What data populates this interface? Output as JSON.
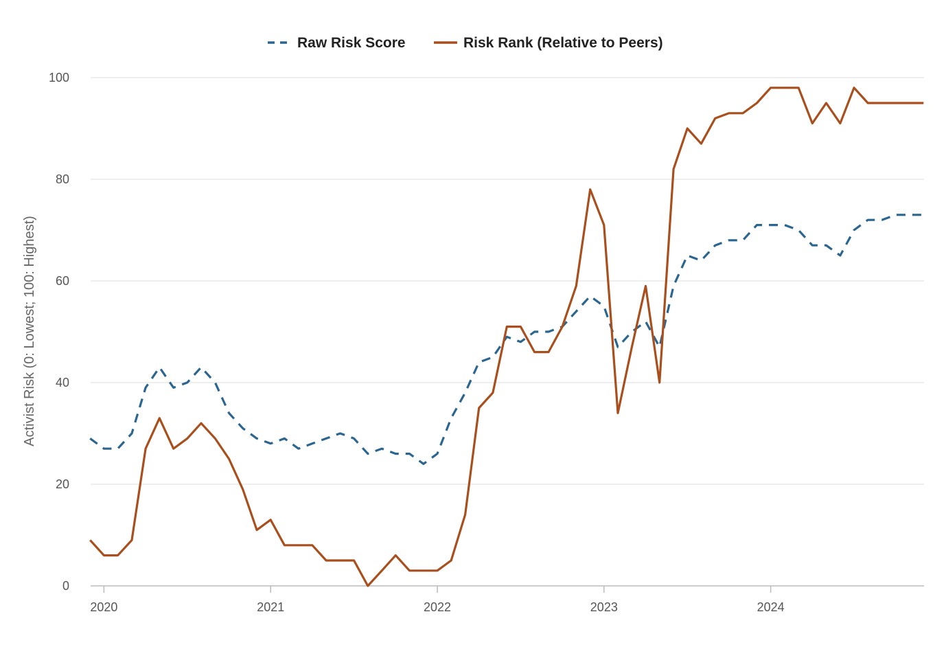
{
  "chart_data": {
    "type": "line",
    "ylabel": "Activist Risk (0: Lowest; 100: Highest)",
    "ylim": [
      0,
      100
    ],
    "yticks": [
      0,
      20,
      40,
      60,
      80,
      100
    ],
    "xlim": [
      2019.92,
      2024.92
    ],
    "xticks": [
      {
        "label": "2020",
        "value": 2020
      },
      {
        "label": "2021",
        "value": 2021
      },
      {
        "label": "2022",
        "value": 2022
      },
      {
        "label": "2023",
        "value": 2023
      },
      {
        "label": "2024",
        "value": 2024
      }
    ],
    "grid": true,
    "legend_position": "top-center",
    "x": [
      2019.917,
      2020.0,
      2020.083,
      2020.167,
      2020.25,
      2020.333,
      2020.417,
      2020.5,
      2020.583,
      2020.667,
      2020.75,
      2020.833,
      2020.917,
      2021.0,
      2021.083,
      2021.167,
      2021.25,
      2021.333,
      2021.417,
      2021.5,
      2021.583,
      2021.667,
      2021.75,
      2021.833,
      2021.917,
      2022.0,
      2022.083,
      2022.167,
      2022.25,
      2022.333,
      2022.417,
      2022.5,
      2022.583,
      2022.667,
      2022.75,
      2022.833,
      2022.917,
      2023.0,
      2023.083,
      2023.167,
      2023.25,
      2023.333,
      2023.417,
      2023.5,
      2023.583,
      2023.667,
      2023.75,
      2023.833,
      2023.917,
      2024.0,
      2024.083,
      2024.167,
      2024.25,
      2024.333,
      2024.417,
      2024.5,
      2024.583,
      2024.667,
      2024.75,
      2024.833,
      2024.917
    ],
    "series": [
      {
        "name": "Raw Risk Score",
        "color": "#2a6690",
        "dash": true,
        "values": [
          29,
          27,
          27,
          30,
          39,
          43,
          39,
          40,
          43,
          40,
          34,
          31,
          29,
          28,
          29,
          27,
          28,
          29,
          30,
          29,
          26,
          27,
          26,
          26,
          24,
          26,
          33,
          38,
          44,
          45,
          49,
          48,
          50,
          50,
          51,
          54,
          57,
          55,
          47,
          50,
          52,
          47,
          59,
          65,
          64,
          67,
          68,
          68,
          71,
          71,
          71,
          70,
          67,
          67,
          65,
          70,
          72,
          72,
          73,
          73,
          73
        ]
      },
      {
        "name": "Risk Rank (Relative to Peers)",
        "color": "#a94f1d",
        "dash": false,
        "values": [
          9,
          6,
          6,
          9,
          27,
          33,
          27,
          29,
          32,
          29,
          25,
          19,
          11,
          13,
          8,
          8,
          8,
          5,
          5,
          5,
          0,
          3,
          6,
          3,
          3,
          3,
          5,
          14,
          35,
          38,
          51,
          51,
          46,
          46,
          51,
          59,
          78,
          71,
          34,
          47,
          59,
          40,
          82,
          90,
          87,
          92,
          93,
          93,
          95,
          98,
          98,
          98,
          91,
          95,
          91,
          98,
          95,
          95,
          95,
          95,
          95
        ]
      }
    ]
  }
}
